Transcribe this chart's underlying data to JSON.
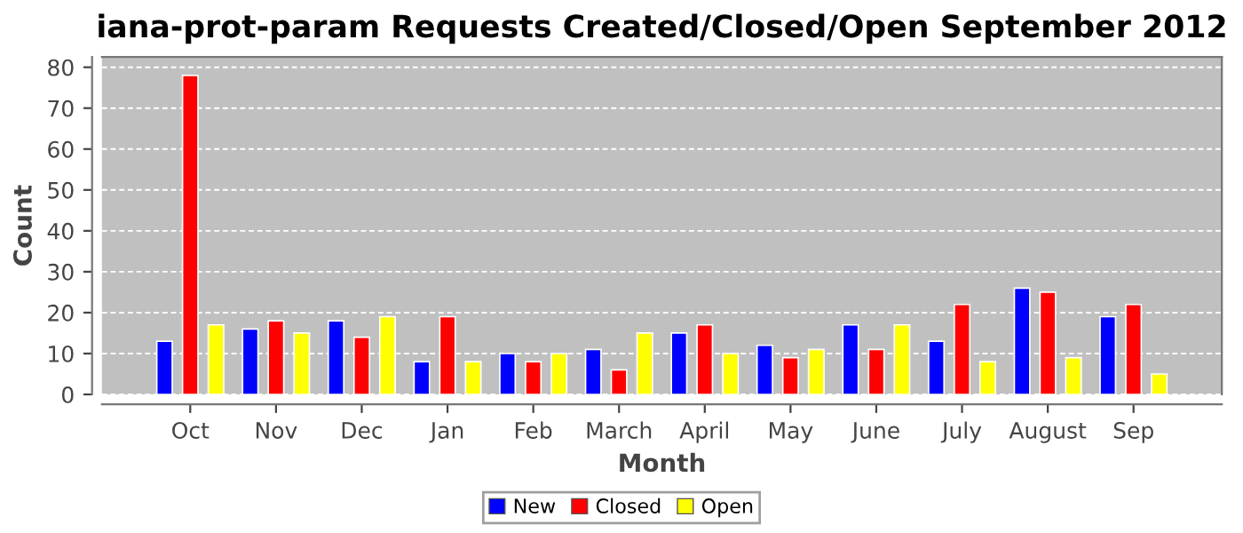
{
  "chart_data": {
    "type": "bar",
    "title": "iana-prot-param Requests Created/Closed/Open September 2012",
    "xlabel": "Month",
    "ylabel": "Count",
    "categories": [
      "Oct",
      "Nov",
      "Dec",
      "Jan",
      "Feb",
      "March",
      "April",
      "May",
      "June",
      "July",
      "August",
      "Sep"
    ],
    "series": [
      {
        "name": "New",
        "color": "#0000ff",
        "values": [
          13,
          16,
          18,
          8,
          10,
          11,
          15,
          12,
          17,
          13,
          26,
          19
        ]
      },
      {
        "name": "Closed",
        "color": "#ff0000",
        "values": [
          78,
          18,
          14,
          19,
          8,
          6,
          17,
          9,
          11,
          22,
          25,
          22
        ]
      },
      {
        "name": "Open",
        "color": "#ffff00",
        "values": [
          17,
          15,
          19,
          8,
          10,
          15,
          10,
          11,
          17,
          8,
          9,
          5
        ]
      }
    ],
    "ylim": [
      0,
      82.5
    ],
    "yticks": [
      0,
      10,
      20,
      30,
      40,
      50,
      60,
      70,
      80
    ],
    "grid": "y",
    "legend": "bottom"
  }
}
